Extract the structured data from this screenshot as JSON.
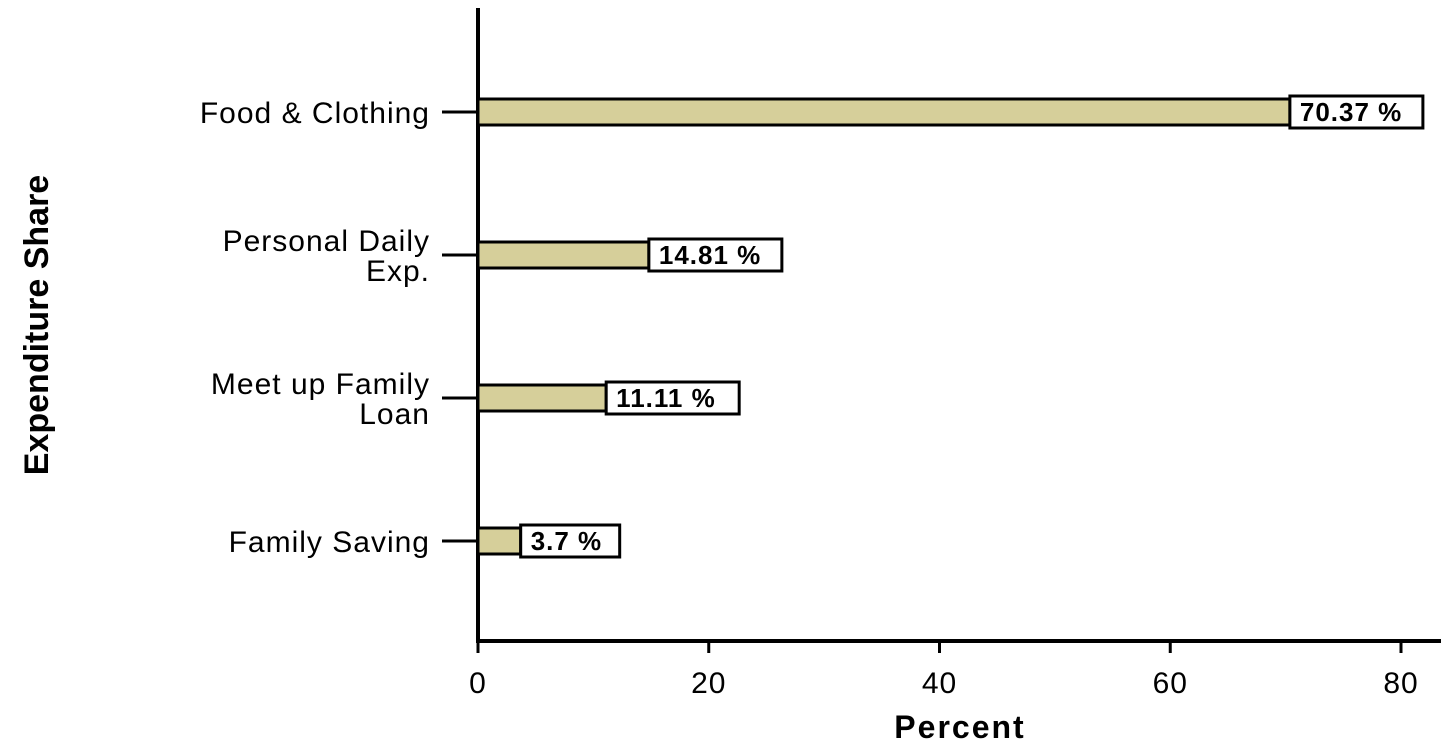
{
  "chart_data": {
    "type": "bar",
    "orientation": "horizontal",
    "categories": [
      [
        "Food & Clothing"
      ],
      [
        "Personal Daily",
        "Exp."
      ],
      [
        "Meet up Family",
        "Loan"
      ],
      [
        "Family Saving"
      ]
    ],
    "values": [
      70.37,
      14.81,
      11.11,
      3.7
    ],
    "data_labels": [
      "70.37 %",
      "14.81 %",
      "11.11 %",
      "3.7 %"
    ],
    "xlabel": "Percent",
    "ylabel": "Expenditure Share",
    "xlim": [
      0,
      83
    ],
    "xticks": [
      0,
      20,
      40,
      60,
      80
    ],
    "grid": false,
    "legend": "none",
    "colors": {
      "bar_fill": "#d6cf9a",
      "bar_stroke": "#000000",
      "label_box_fill": "#ffffff",
      "axis": "#000000"
    }
  }
}
